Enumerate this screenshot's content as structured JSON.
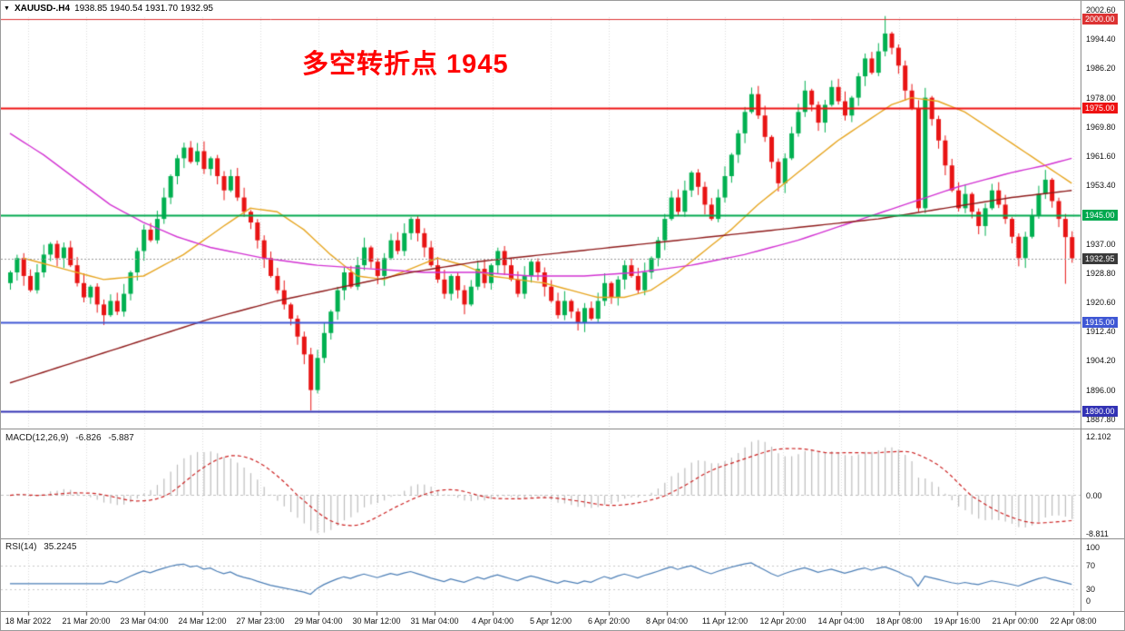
{
  "ui": {
    "title_bar": {
      "collapse_icon": "▼",
      "symbol": "XAUUSD-.H4",
      "ohlc": "1938.85 1940.54 1931.70 1932.95"
    },
    "annotation": {
      "text": "多空转折点 1945",
      "color": "#ff0000"
    },
    "macd": {
      "name_params": "MACD(12,26,9)",
      "value1": "-6.826",
      "value2": "-5.887"
    },
    "rsi": {
      "name_params": "RSI(14)",
      "value": "35.2245"
    }
  },
  "chart_data": {
    "type": "candlestick",
    "title": "XAUUSD- H4 gold futures chart",
    "x_labels": [
      "18 Mar 2022",
      "21 Mar 20:00",
      "23 Mar 04:00",
      "24 Mar 12:00",
      "27 Mar 23:00",
      "29 Mar 04:00",
      "30 Mar 12:00",
      "31 Mar 04:00",
      "4 Apr 04:00",
      "5 Apr 12:00",
      "6 Apr 20:00",
      "8 Apr 04:00",
      "11 Apr 12:00",
      "12 Apr 20:00",
      "14 Apr 04:00",
      "18 Apr 08:00",
      "19 Apr 16:00",
      "21 Apr 00:00",
      "22 Apr 08:00"
    ],
    "y_axis": {
      "min": 1886.5,
      "max": 2003.0,
      "ticks": [
        "2002.60",
        "1994.40",
        "1986.20",
        "1978.00",
        "1969.80",
        "1961.60",
        "1953.40",
        "1937.00",
        "1928.80",
        "1920.60",
        "1912.40",
        "1904.20",
        "1896.00",
        "1887.80"
      ]
    },
    "candles": {
      "first_open": 1926.0,
      "closes": [
        1929,
        1933,
        1928,
        1924,
        1929,
        1934,
        1937,
        1933,
        1936,
        1931,
        1926,
        1922,
        1925,
        1920,
        1917,
        1921,
        1918,
        1923,
        1929,
        1935,
        1941,
        1938,
        1944,
        1950,
        1956,
        1961,
        1964,
        1960,
        1963,
        1958,
        1961,
        1956,
        1952,
        1956,
        1950,
        1946,
        1943,
        1938,
        1933,
        1928,
        1924,
        1920,
        1916,
        1911,
        1906,
        1896,
        1905,
        1912,
        1918,
        1924,
        1929,
        1925,
        1931,
        1936,
        1932,
        1928,
        1933,
        1938,
        1935,
        1940,
        1944,
        1940,
        1936,
        1931,
        1927,
        1923,
        1928,
        1924,
        1920,
        1925,
        1930,
        1926,
        1931,
        1935,
        1931,
        1927,
        1923,
        1928,
        1932,
        1929,
        1925,
        1921,
        1917,
        1921,
        1918,
        1915,
        1919,
        1916,
        1921,
        1926,
        1922,
        1927,
        1931,
        1928,
        1924,
        1929,
        1933,
        1938,
        1944,
        1950,
        1946,
        1952,
        1957,
        1953,
        1948,
        1944,
        1950,
        1956,
        1962,
        1968,
        1974,
        1979,
        1973,
        1967,
        1960,
        1954,
        1961,
        1968,
        1974,
        1980,
        1976,
        1971,
        1976,
        1981,
        1977,
        1973,
        1978,
        1984,
        1989,
        1985,
        1991,
        1996,
        1992,
        1987,
        1980,
        1975,
        1947,
        1978,
        1972,
        1966,
        1959,
        1952,
        1947,
        1951,
        1946,
        1942,
        1947,
        1952,
        1948,
        1944,
        1939,
        1933,
        1939,
        1945,
        1951,
        1955,
        1949,
        1944,
        1938.9,
        1932.95
      ],
      "wick_overrides": {
        "45": [
          null,
          1890.3
        ],
        "131": [
          2000.9,
          null
        ],
        "158": [
          null,
          1925.8
        ],
        "159": [
          1940.54,
          1931.7
        ]
      }
    },
    "levels": [
      {
        "price": 2000.0,
        "label": "2000.00",
        "color": "#dc3232",
        "width": 1
      },
      {
        "price": 1975.0,
        "label": "1975.00",
        "color": "#ee1111",
        "width": 2
      },
      {
        "price": 1945.0,
        "label": "1945.00",
        "color": "#00a84e",
        "width": 2
      },
      {
        "price": 1915.0,
        "label": "1915.00",
        "color": "#3f57d4",
        "width": 2
      },
      {
        "price": 1890.0,
        "label": "1890.00",
        "color": "#3232b4",
        "width": 2
      }
    ],
    "current_price": {
      "value": 1932.95,
      "label": "1932.95",
      "badge_bg": "#3a3a3a",
      "line_color": "#9a9a9a"
    },
    "moving_averages": [
      {
        "name": "ma-medium-orange",
        "color": "#e6a520",
        "points": [
          [
            2,
            1933
          ],
          [
            8,
            1930
          ],
          [
            14,
            1927
          ],
          [
            20,
            1928
          ],
          [
            26,
            1934
          ],
          [
            32,
            1942
          ],
          [
            36,
            1947
          ],
          [
            40,
            1946
          ],
          [
            44,
            1941
          ],
          [
            48,
            1934
          ],
          [
            52,
            1928
          ],
          [
            56,
            1927
          ],
          [
            60,
            1930
          ],
          [
            64,
            1933
          ],
          [
            68,
            1931
          ],
          [
            72,
            1928
          ],
          [
            76,
            1927
          ],
          [
            80,
            1926
          ],
          [
            84,
            1924
          ],
          [
            88,
            1922
          ],
          [
            92,
            1922
          ],
          [
            96,
            1924
          ],
          [
            100,
            1929
          ],
          [
            104,
            1935
          ],
          [
            108,
            1941
          ],
          [
            112,
            1948
          ],
          [
            116,
            1954
          ],
          [
            120,
            1960
          ],
          [
            124,
            1966
          ],
          [
            128,
            1971
          ],
          [
            132,
            1976
          ],
          [
            135,
            1978
          ],
          [
            139,
            1977
          ],
          [
            143,
            1974
          ],
          [
            147,
            1969
          ],
          [
            151,
            1964
          ],
          [
            155,
            1959
          ],
          [
            159,
            1954
          ]
        ]
      },
      {
        "name": "ma-slow-magenta",
        "color": "#d232d2",
        "points": [
          [
            0,
            1968
          ],
          [
            5,
            1962
          ],
          [
            10,
            1955
          ],
          [
            15,
            1948
          ],
          [
            20,
            1943
          ],
          [
            25,
            1939
          ],
          [
            30,
            1936
          ],
          [
            38,
            1933
          ],
          [
            46,
            1931
          ],
          [
            54,
            1930
          ],
          [
            62,
            1929
          ],
          [
            70,
            1929
          ],
          [
            78,
            1928
          ],
          [
            86,
            1928
          ],
          [
            94,
            1929
          ],
          [
            102,
            1931
          ],
          [
            110,
            1934
          ],
          [
            118,
            1938
          ],
          [
            126,
            1943
          ],
          [
            134,
            1948
          ],
          [
            142,
            1953
          ],
          [
            150,
            1957
          ],
          [
            155,
            1959
          ],
          [
            159,
            1961
          ]
        ]
      },
      {
        "name": "ma-long-darkred",
        "color": "#8e1a1a",
        "points": [
          [
            0,
            1898
          ],
          [
            10,
            1904
          ],
          [
            20,
            1910
          ],
          [
            30,
            1916
          ],
          [
            40,
            1921
          ],
          [
            50,
            1925
          ],
          [
            60,
            1929
          ],
          [
            70,
            1932
          ],
          [
            80,
            1934
          ],
          [
            90,
            1936
          ],
          [
            100,
            1938
          ],
          [
            110,
            1940
          ],
          [
            120,
            1942
          ],
          [
            130,
            1944
          ],
          [
            140,
            1947
          ],
          [
            150,
            1950
          ],
          [
            159,
            1952
          ]
        ]
      }
    ],
    "indicators": {
      "macd": {
        "name": "MACD",
        "params": "12,26,9",
        "values": [
          -6.826,
          -5.887
        ],
        "scale_labels": [
          "12.102",
          "0.00",
          "-8.811"
        ],
        "scale_values": [
          12.102,
          0.0,
          -8.811
        ],
        "histogram_color": "#bcbcbc",
        "signal_color": "#cc2222"
      },
      "rsi": {
        "name": "RSI",
        "params": "14",
        "value": 35.2245,
        "scale_labels": [
          "100",
          "70",
          "30",
          "0"
        ],
        "scale_values": [
          100,
          70,
          30,
          0
        ],
        "levels": [
          70,
          30
        ],
        "line_color": "#4a7db5"
      }
    },
    "candle_colors": {
      "up": "#00b050",
      "down": "#e81414"
    }
  }
}
